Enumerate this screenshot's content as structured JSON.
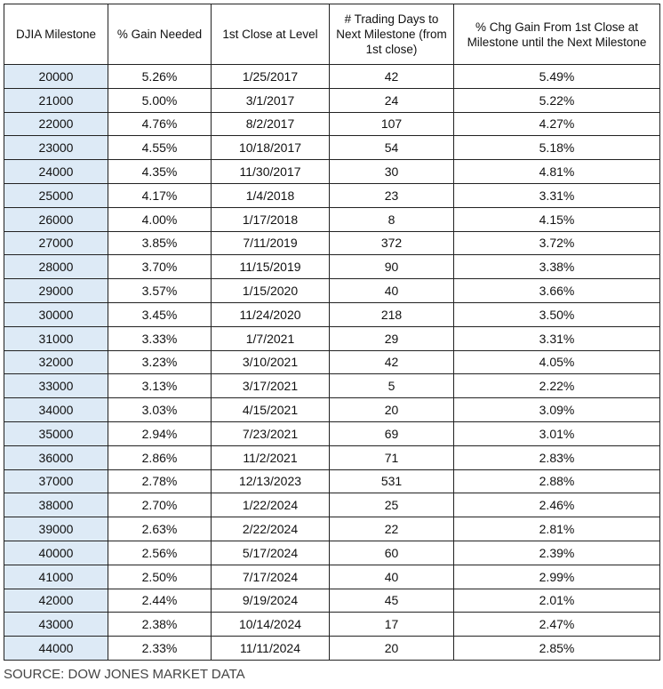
{
  "table": {
    "headers": [
      "DJIA Milestone",
      "% Gain Needed",
      "1st Close at Level",
      "# Trading Days to Next Milestone (from 1st close)",
      "% Chg Gain From 1st Close at Milestone until the Next Milestone"
    ],
    "rows": [
      [
        "20000",
        "5.26%",
        "1/25/2017",
        "42",
        "5.49%"
      ],
      [
        "21000",
        "5.00%",
        "3/1/2017",
        "24",
        "5.22%"
      ],
      [
        "22000",
        "4.76%",
        "8/2/2017",
        "107",
        "4.27%"
      ],
      [
        "23000",
        "4.55%",
        "10/18/2017",
        "54",
        "5.18%"
      ],
      [
        "24000",
        "4.35%",
        "11/30/2017",
        "30",
        "4.81%"
      ],
      [
        "25000",
        "4.17%",
        "1/4/2018",
        "23",
        "3.31%"
      ],
      [
        "26000",
        "4.00%",
        "1/17/2018",
        "8",
        "4.15%"
      ],
      [
        "27000",
        "3.85%",
        "7/11/2019",
        "372",
        "3.72%"
      ],
      [
        "28000",
        "3.70%",
        "11/15/2019",
        "90",
        "3.38%"
      ],
      [
        "29000",
        "3.57%",
        "1/15/2020",
        "40",
        "3.66%"
      ],
      [
        "30000",
        "3.45%",
        "11/24/2020",
        "218",
        "3.50%"
      ],
      [
        "31000",
        "3.33%",
        "1/7/2021",
        "29",
        "3.31%"
      ],
      [
        "32000",
        "3.23%",
        "3/10/2021",
        "42",
        "4.05%"
      ],
      [
        "33000",
        "3.13%",
        "3/17/2021",
        "5",
        "2.22%"
      ],
      [
        "34000",
        "3.03%",
        "4/15/2021",
        "20",
        "3.09%"
      ],
      [
        "35000",
        "2.94%",
        "7/23/2021",
        "69",
        "3.01%"
      ],
      [
        "36000",
        "2.86%",
        "11/2/2021",
        "71",
        "2.83%"
      ],
      [
        "37000",
        "2.78%",
        "12/13/2023",
        "531",
        "2.88%"
      ],
      [
        "38000",
        "2.70%",
        "1/22/2024",
        "25",
        "2.46%"
      ],
      [
        "39000",
        "2.63%",
        "2/22/2024",
        "22",
        "2.81%"
      ],
      [
        "40000",
        "2.56%",
        "5/17/2024",
        "60",
        "2.39%"
      ],
      [
        "41000",
        "2.50%",
        "7/17/2024",
        "40",
        "2.99%"
      ],
      [
        "42000",
        "2.44%",
        "9/19/2024",
        "45",
        "2.01%"
      ],
      [
        "43000",
        "2.38%",
        "10/14/2024",
        "17",
        "2.47%"
      ],
      [
        "44000",
        "2.33%",
        "11/11/2024",
        "20",
        "2.85%"
      ]
    ]
  },
  "source": "SOURCE: DOW JONES MARKET DATA"
}
